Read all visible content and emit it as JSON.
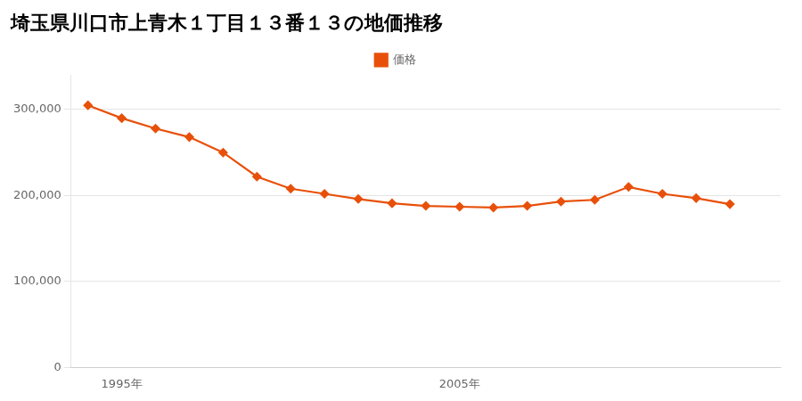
{
  "chart_data": {
    "type": "line",
    "title": "埼玉県川口市上青木１丁目１３番１３の地価推移",
    "x": [
      1994,
      1995,
      1996,
      1997,
      1998,
      1999,
      2000,
      2001,
      2002,
      2003,
      2004,
      2005,
      2006,
      2007,
      2008,
      2009,
      2010,
      2011,
      2012,
      2013
    ],
    "series": [
      {
        "name": "価格",
        "color": "#e8500a",
        "values": [
          305000,
          290000,
          278000,
          268000,
          250000,
          222000,
          208000,
          202000,
          196000,
          191000,
          188000,
          187000,
          186000,
          188000,
          193000,
          195000,
          210000,
          202000,
          197000,
          190000
        ]
      }
    ],
    "xlim": [
      1993.5,
      2014.5
    ],
    "xticks": [
      {
        "value": 1995,
        "label": "1995年"
      },
      {
        "value": 2005,
        "label": "2005年"
      }
    ],
    "ylim": [
      0,
      340000
    ],
    "yticks": [
      0,
      {
        "value": 100000,
        "label": "100,000"
      },
      {
        "value": 200000,
        "label": "200,000"
      },
      {
        "value": 300000,
        "label": "300,000"
      }
    ],
    "grid": "y",
    "legend": "top",
    "marker": "diamond"
  }
}
